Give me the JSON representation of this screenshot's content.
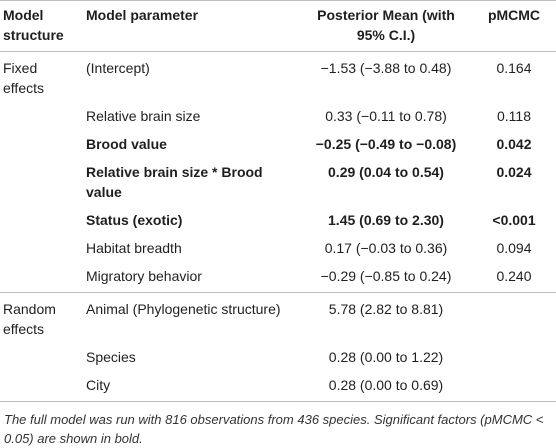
{
  "table": {
    "headers": {
      "structure": "Model structure",
      "parameter": "Model parameter",
      "mean": "Posterior Mean (with 95% C.I.)",
      "p": "pMCMC"
    },
    "fixed": {
      "label": "Fixed effects",
      "rows": [
        {
          "parameter": "(Intercept)",
          "mean": "−1.53 (−3.88 to 0.48)",
          "p": "0.164",
          "bold": false
        },
        {
          "parameter": "Relative brain size",
          "mean": "0.33 (−0.11 to 0.78)",
          "p": "0.118",
          "bold": false
        },
        {
          "parameter": "Brood value",
          "mean": "−0.25 (−0.49 to −0.08)",
          "p": "0.042",
          "bold": true
        },
        {
          "parameter": "Relative brain size * Brood value",
          "mean": "0.29 (0.04 to 0.54)",
          "p": "0.024",
          "bold": true
        },
        {
          "parameter": "Status (exotic)",
          "mean": "1.45 (0.69 to 2.30)",
          "p": "<0.001",
          "bold": true
        },
        {
          "parameter": "Habitat breadth",
          "mean": "0.17 (−0.03 to 0.36)",
          "p": "0.094",
          "bold": false
        },
        {
          "parameter": "Migratory behavior",
          "mean": "−0.29 (−0.85 to 0.24)",
          "p": "0.240",
          "bold": false
        }
      ]
    },
    "random": {
      "label": "Random effects",
      "rows": [
        {
          "parameter": "Animal (Phylogenetic structure)",
          "mean": "5.78 (2.82 to 8.81)",
          "p": ""
        },
        {
          "parameter": "Species",
          "mean": "0.28 (0.00 to 1.22)",
          "p": ""
        },
        {
          "parameter": "City",
          "mean": "0.28 (0.00 to 0.69)",
          "p": ""
        }
      ]
    },
    "footnote": "The full model was run with 816 observations from 436 species. Significant factors (pMCMC < 0.05) are shown in bold."
  }
}
